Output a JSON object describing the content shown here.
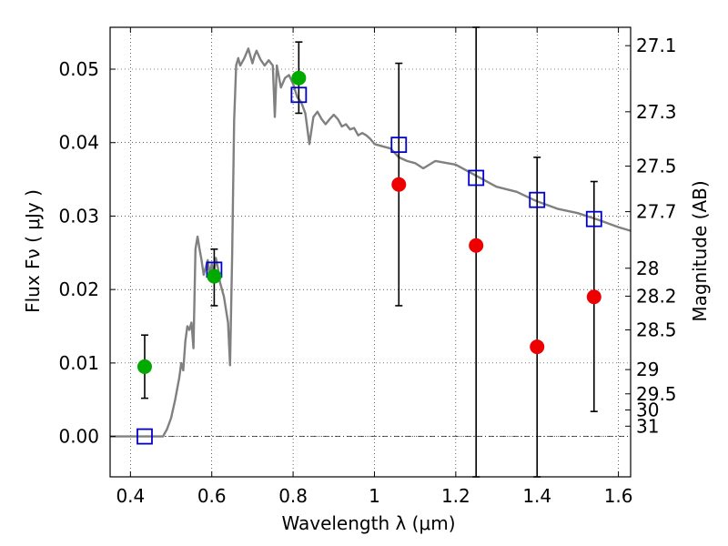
{
  "chart_data": {
    "type": "scatter",
    "xlabel": "Wavelength  λ (μm)",
    "ylabel": "Flux  Fν  ( μJy )",
    "y2label": "Magnitude (AB)",
    "xlim": [
      0.35,
      1.63
    ],
    "ylim": [
      -0.0055,
      0.0557
    ],
    "grid": true,
    "xticks": [
      {
        "value": 0.4,
        "label": "0.4"
      },
      {
        "value": 0.6,
        "label": "0.6"
      },
      {
        "value": 0.8,
        "label": "0.8"
      },
      {
        "value": 1.0,
        "label": "1"
      },
      {
        "value": 1.2,
        "label": "1.2"
      },
      {
        "value": 1.4,
        "label": "1.4"
      },
      {
        "value": 1.6,
        "label": "1.6"
      }
    ],
    "yticks": [
      {
        "value": 0.0,
        "label": "0.00"
      },
      {
        "value": 0.01,
        "label": "0.01"
      },
      {
        "value": 0.02,
        "label": "0.02"
      },
      {
        "value": 0.03,
        "label": "0.03"
      },
      {
        "value": 0.04,
        "label": "0.04"
      },
      {
        "value": 0.05,
        "label": "0.05"
      }
    ],
    "magnitude_ticks": [
      {
        "flux": 0.0532,
        "label": "27.1"
      },
      {
        "flux": 0.0442,
        "label": "27.3"
      },
      {
        "flux": 0.0368,
        "label": "27.5"
      },
      {
        "flux": 0.0306,
        "label": "27.7"
      },
      {
        "flux": 0.0229,
        "label": "28"
      },
      {
        "flux": 0.0191,
        "label": "28.2"
      },
      {
        "flux": 0.0145,
        "label": "28.5"
      },
      {
        "flux": 0.0091,
        "label": "29"
      },
      {
        "flux": 0.0058,
        "label": "29.5"
      },
      {
        "flux": 0.0036,
        "label": "30"
      },
      {
        "flux": 0.0014,
        "label": "31"
      }
    ],
    "series": [
      {
        "kind": "model-sed",
        "color": "#808080",
        "x": [
          0.35,
          0.48,
          0.49,
          0.5,
          0.51,
          0.52,
          0.525,
          0.53,
          0.535,
          0.54,
          0.545,
          0.55,
          0.555,
          0.56,
          0.565,
          0.57,
          0.575,
          0.58,
          0.585,
          0.59,
          0.595,
          0.6,
          0.605,
          0.61,
          0.615,
          0.62,
          0.63,
          0.64,
          0.645,
          0.65,
          0.655,
          0.66,
          0.665,
          0.67,
          0.68,
          0.69,
          0.7,
          0.705,
          0.71,
          0.72,
          0.73,
          0.74,
          0.75,
          0.755,
          0.76,
          0.77,
          0.78,
          0.79,
          0.8,
          0.81,
          0.82,
          0.83,
          0.84,
          0.85,
          0.86,
          0.87,
          0.88,
          0.89,
          0.9,
          0.91,
          0.92,
          0.93,
          0.94,
          0.95,
          0.96,
          0.97,
          0.98,
          0.99,
          1.0,
          1.02,
          1.04,
          1.06,
          1.08,
          1.1,
          1.12,
          1.15,
          1.2,
          1.25,
          1.3,
          1.35,
          1.4,
          1.45,
          1.5,
          1.55,
          1.6,
          1.63
        ],
        "y": [
          0.0,
          0.0,
          0.001,
          0.0025,
          0.005,
          0.008,
          0.01,
          0.009,
          0.013,
          0.015,
          0.0145,
          0.0155,
          0.012,
          0.0255,
          0.0272,
          0.0255,
          0.024,
          0.022,
          0.023,
          0.024,
          0.022,
          0.0235,
          0.022,
          0.0243,
          0.023,
          0.021,
          0.019,
          0.0155,
          0.0097,
          0.0245,
          0.043,
          0.0505,
          0.0515,
          0.0505,
          0.0515,
          0.0528,
          0.0508,
          0.0518,
          0.0525,
          0.0513,
          0.0505,
          0.0512,
          0.0505,
          0.0435,
          0.0505,
          0.0475,
          0.0488,
          0.0492,
          0.048,
          0.0462,
          0.0455,
          0.044,
          0.0398,
          0.0435,
          0.0442,
          0.0432,
          0.0425,
          0.0432,
          0.0438,
          0.0432,
          0.0422,
          0.0425,
          0.0418,
          0.042,
          0.041,
          0.0413,
          0.041,
          0.0405,
          0.0398,
          0.0395,
          0.0392,
          0.038,
          0.0375,
          0.0372,
          0.0365,
          0.0375,
          0.037,
          0.0355,
          0.034,
          0.0333,
          0.032,
          0.031,
          0.0304,
          0.0295,
          0.0285,
          0.028
        ]
      },
      {
        "kind": "model-photometry",
        "marker": "open-square",
        "color": "#0000cc",
        "x": [
          0.435,
          0.606,
          0.814,
          1.06,
          1.25,
          1.4,
          1.54
        ],
        "y": [
          0.0,
          0.0227,
          0.0465,
          0.0397,
          0.0352,
          0.0322,
          0.0296
        ]
      },
      {
        "kind": "detections",
        "marker": "filled-circle",
        "color": "#00aa00",
        "x": [
          0.435,
          0.606,
          0.814
        ],
        "y": [
          0.0095,
          0.0218,
          0.0488
        ],
        "yerr_low": [
          0.0052,
          0.0178,
          0.044
        ],
        "yerr_high": [
          0.0138,
          0.0255,
          0.0537
        ]
      },
      {
        "kind": "low-significance",
        "marker": "filled-circle",
        "color": "#ee0000",
        "x": [
          1.06,
          1.25,
          1.4,
          1.54
        ],
        "y": [
          0.0343,
          0.026,
          0.0122,
          0.019
        ],
        "yerr_low": [
          0.0178,
          -0.0055,
          -0.0055,
          0.0034
        ],
        "yerr_high": [
          0.0508,
          0.0557,
          0.038,
          0.0347
        ]
      }
    ],
    "zero_line": {
      "y": 0.0,
      "style": "dash-dot"
    }
  }
}
